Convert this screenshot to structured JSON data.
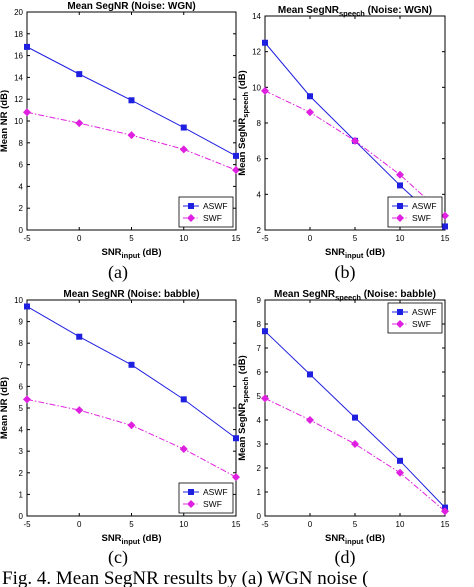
{
  "figure": {
    "caption": "Fig. 4. Mean SegNR results by (a) WGN noise ("
  },
  "chart_data": [
    {
      "id": "a",
      "type": "line",
      "sublabel": "(a)",
      "title": "Mean SegNR  (Noise: WGN)",
      "ylabel": "Mean NR (dB)",
      "xlabel_main": "SNR",
      "xlabel_sub": "input",
      "xlabel_tail": " (dB)",
      "x": [
        -5,
        0,
        5,
        10,
        15
      ],
      "xticks": [
        "-5",
        "0",
        "5",
        "10",
        "15"
      ],
      "ylim": [
        0,
        20
      ],
      "yticks": [
        "0",
        "2",
        "4",
        "6",
        "8",
        "10",
        "12",
        "14",
        "16",
        "18",
        "20"
      ],
      "grid": false,
      "legend_position": "bottom-right",
      "series": [
        {
          "name": "ASWF",
          "color": "#1f1fe0",
          "marker": "square",
          "dash": "solid",
          "values": [
            16.8,
            14.3,
            11.9,
            9.4,
            6.8
          ]
        },
        {
          "name": "SWF",
          "color": "#e020e0",
          "marker": "diamond",
          "dash": "dashdot",
          "values": [
            10.8,
            9.8,
            8.7,
            7.4,
            5.5
          ]
        }
      ]
    },
    {
      "id": "b",
      "type": "line",
      "sublabel": "(b)",
      "title_main": "Mean SegNR",
      "title_sub": "speech",
      "title_tail": " (Noise: WGN)",
      "ylabel_main": "Mean SegNR",
      "ylabel_sub": "speech",
      "ylabel_tail": " (dB)",
      "xlabel_main": "SNR",
      "xlabel_sub": "input",
      "xlabel_tail": " (dB)",
      "x": [
        -5,
        0,
        5,
        10,
        15
      ],
      "xticks": [
        "-5",
        "0",
        "5",
        "10",
        "15"
      ],
      "ylim": [
        2,
        14
      ],
      "yticks": [
        "2",
        "4",
        "6",
        "8",
        "10",
        "12",
        "14"
      ],
      "grid": false,
      "legend_position": "bottom-right",
      "series": [
        {
          "name": "ASWF",
          "color": "#1f1fe0",
          "marker": "square",
          "dash": "solid",
          "values": [
            12.5,
            9.5,
            7.0,
            4.5,
            2.2
          ]
        },
        {
          "name": "SWF",
          "color": "#e020e0",
          "marker": "diamond",
          "dash": "dashdot",
          "values": [
            9.8,
            8.6,
            7.0,
            5.1,
            2.8
          ]
        }
      ]
    },
    {
      "id": "c",
      "type": "line",
      "sublabel": "(c)",
      "title": "Mean SegNR  (Noise: babble)",
      "ylabel": "Mean NR (dB)",
      "xlabel_main": "SNR",
      "xlabel_sub": "input",
      "xlabel_tail": " (dB)",
      "x": [
        -5,
        0,
        5,
        10,
        15
      ],
      "xticks": [
        "-5",
        "0",
        "5",
        "10",
        "15"
      ],
      "ylim": [
        0,
        10
      ],
      "yticks": [
        "0",
        "1",
        "2",
        "3",
        "4",
        "5",
        "6",
        "7",
        "8",
        "9",
        "10"
      ],
      "grid": false,
      "legend_position": "bottom-right",
      "series": [
        {
          "name": "ASWF",
          "color": "#1f1fe0",
          "marker": "square",
          "dash": "solid",
          "values": [
            9.7,
            8.3,
            7.0,
            5.4,
            3.6
          ]
        },
        {
          "name": "SWF",
          "color": "#e020e0",
          "marker": "diamond",
          "dash": "dashdot",
          "values": [
            5.4,
            4.9,
            4.2,
            3.1,
            1.8
          ]
        }
      ]
    },
    {
      "id": "d",
      "type": "line",
      "sublabel": "(d)",
      "title_main": "Mean SegNR",
      "title_sub": "speech",
      "title_tail": "  (Noise: babble)",
      "ylabel_main": "Mean SegNR",
      "ylabel_sub": "speech",
      "ylabel_tail": " (dB)",
      "xlabel_main": "SNR",
      "xlabel_sub": "input",
      "xlabel_tail": " (dB)",
      "x": [
        -5,
        0,
        5,
        10,
        15
      ],
      "xticks": [
        "-5",
        "0",
        "5",
        "10",
        "15"
      ],
      "ylim": [
        0,
        9
      ],
      "yticks": [
        "0",
        "1",
        "2",
        "3",
        "4",
        "5",
        "6",
        "7",
        "8",
        "9"
      ],
      "grid": false,
      "legend_position": "top-right",
      "series": [
        {
          "name": "ASWF",
          "color": "#1f1fe0",
          "marker": "square",
          "dash": "solid",
          "values": [
            7.7,
            5.9,
            4.1,
            2.3,
            0.35
          ]
        },
        {
          "name": "SWF",
          "color": "#e020e0",
          "marker": "diamond",
          "dash": "dashdot",
          "values": [
            4.9,
            4.0,
            3.0,
            1.8,
            0.2
          ]
        }
      ]
    }
  ]
}
